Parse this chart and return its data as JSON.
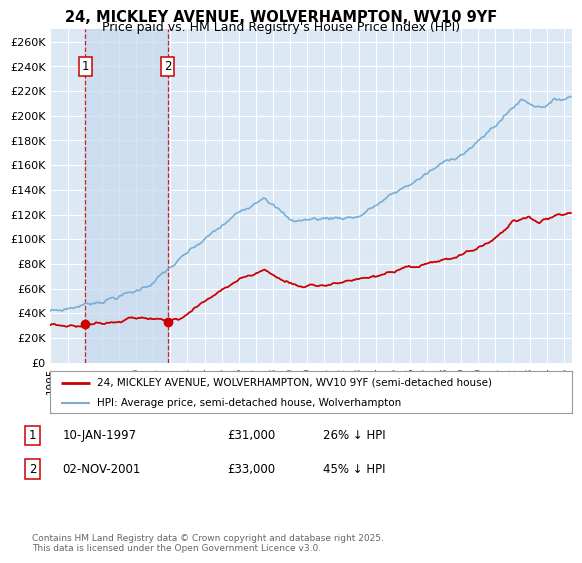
{
  "title_line1": "24, MICKLEY AVENUE, WOLVERHAMPTON, WV10 9YF",
  "title_line2": "Price paid vs. HM Land Registry's House Price Index (HPI)",
  "ylabel_ticks": [
    "£0",
    "£20K",
    "£40K",
    "£60K",
    "£80K",
    "£100K",
    "£120K",
    "£140K",
    "£160K",
    "£180K",
    "£200K",
    "£220K",
    "£240K",
    "£260K"
  ],
  "ytick_vals": [
    0,
    20000,
    40000,
    60000,
    80000,
    100000,
    120000,
    140000,
    160000,
    180000,
    200000,
    220000,
    240000,
    260000
  ],
  "ylim": [
    0,
    270000
  ],
  "xlim_start": 1995.0,
  "xlim_end": 2025.5,
  "plot_bg_color": "#dce9f5",
  "shade_color": "#c8d8ee",
  "grid_color": "#ffffff",
  "sale1_x": 1997.03,
  "sale1_y": 31000,
  "sale2_x": 2001.84,
  "sale2_y": 33000,
  "legend_line1": "24, MICKLEY AVENUE, WOLVERHAMPTON, WV10 9YF (semi-detached house)",
  "legend_line2": "HPI: Average price, semi-detached house, Wolverhampton",
  "annotation1_label": "1",
  "annotation1_date": "10-JAN-1997",
  "annotation1_price": "£31,000",
  "annotation1_hpi": "26% ↓ HPI",
  "annotation2_label": "2",
  "annotation2_date": "02-NOV-2001",
  "annotation2_price": "£33,000",
  "annotation2_hpi": "45% ↓ HPI",
  "footer": "Contains HM Land Registry data © Crown copyright and database right 2025.\nThis data is licensed under the Open Government Licence v3.0.",
  "red_color": "#cc0000",
  "blue_color": "#7aadd4",
  "xticks": [
    1995,
    1996,
    1997,
    1998,
    1999,
    2000,
    2001,
    2002,
    2003,
    2004,
    2005,
    2006,
    2007,
    2008,
    2009,
    2010,
    2011,
    2012,
    2013,
    2014,
    2015,
    2016,
    2017,
    2018,
    2019,
    2020,
    2021,
    2022,
    2023,
    2024,
    2025
  ]
}
